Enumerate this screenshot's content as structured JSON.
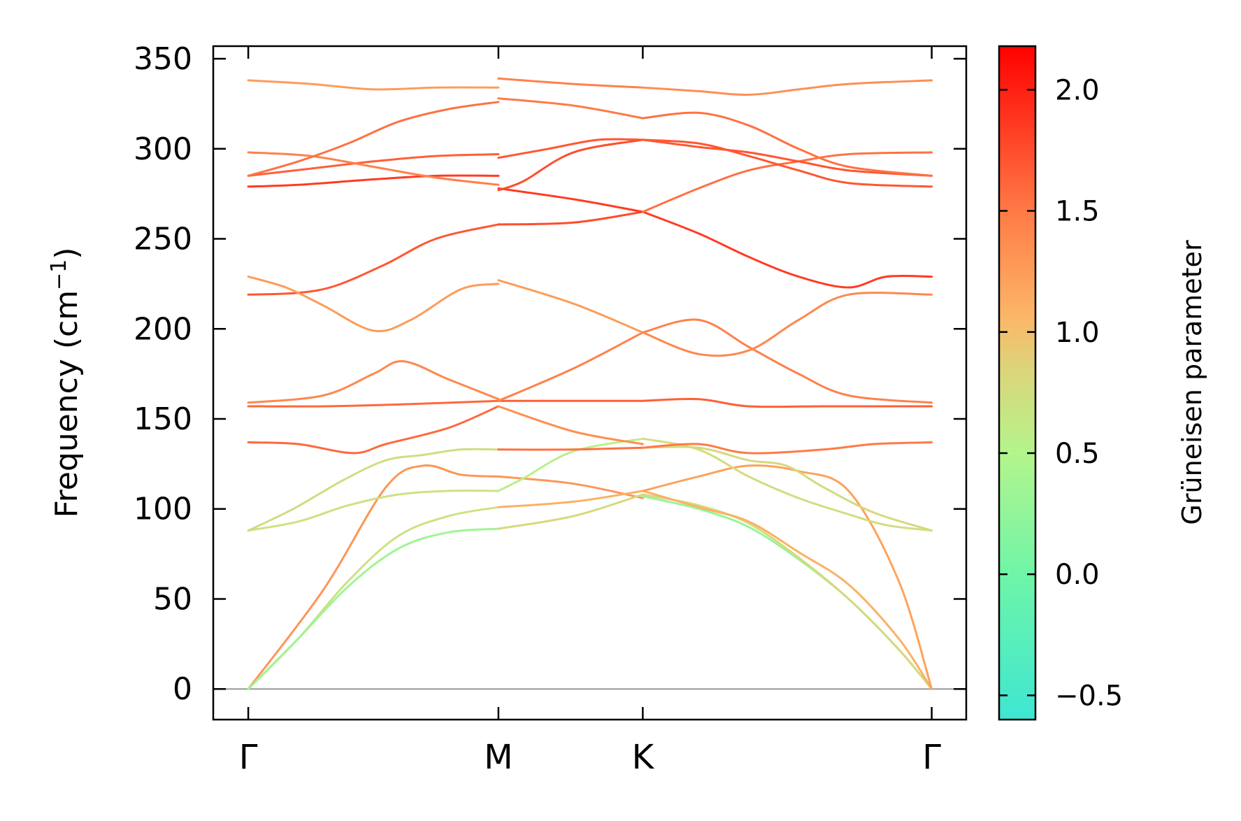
{
  "chart_data": {
    "type": "line",
    "title": "",
    "xlabel": "",
    "ylabel": "Frequency (cm",
    "ylabel_sup": "−1",
    "ylabel_close": ")",
    "ylim": [
      -17,
      357
    ],
    "yticks": [
      0,
      50,
      100,
      150,
      200,
      250,
      300,
      350
    ],
    "ytick_labels": [
      "0",
      "50",
      "100",
      "150",
      "200",
      "250",
      "300",
      "350"
    ],
    "x_points": [
      {
        "label": "Γ",
        "x": 0
      },
      {
        "label": "M",
        "x": 1
      },
      {
        "label": "K",
        "x": 1.577
      },
      {
        "label": "Γ",
        "x": 2.732
      }
    ],
    "xlim": [
      -0.14,
      2.87
    ],
    "zero_line": true,
    "colorbar": {
      "label": "Grüneisen parameter",
      "range": [
        -0.6,
        2.18
      ],
      "ticks": [
        -0.5,
        0.0,
        0.5,
        1.0,
        1.5,
        2.0
      ],
      "tick_labels": [
        "−0.5",
        "0.0",
        "0.5",
        "1.0",
        "1.5",
        "2.0"
      ],
      "colormap": "rainbow-upper",
      "stops": [
        {
          "v": -0.6,
          "color": "#3ee6d2"
        },
        {
          "v": 0.0,
          "color": "#6ff5a8"
        },
        {
          "v": 0.5,
          "color": "#b4f58c"
        },
        {
          "v": 0.85,
          "color": "#dcd47a"
        },
        {
          "v": 1.05,
          "color": "#fbb869"
        },
        {
          "v": 1.5,
          "color": "#ff7a46"
        },
        {
          "v": 2.18,
          "color": "#ff0000"
        }
      ]
    },
    "series": [
      {
        "segment": "Γ-M",
        "gamma": 1.3,
        "points": [
          [
            0,
            0
          ],
          [
            0.3,
            55
          ],
          [
            0.55,
            112
          ],
          [
            0.7,
            124
          ],
          [
            0.85,
            119
          ],
          [
            1,
            118
          ]
        ]
      },
      {
        "segment": "Γ-M",
        "gamma": 0.7,
        "points": [
          [
            0,
            0
          ],
          [
            0.2,
            28
          ],
          [
            0.4,
            60
          ],
          [
            0.6,
            85
          ],
          [
            0.8,
            96
          ],
          [
            1,
            101
          ]
        ]
      },
      {
        "segment": "Γ-M",
        "gamma": 0.35,
        "points": [
          [
            0,
            0
          ],
          [
            0.2,
            28
          ],
          [
            0.4,
            57
          ],
          [
            0.6,
            78
          ],
          [
            0.8,
            87
          ],
          [
            1,
            89
          ]
        ]
      },
      {
        "segment": "Γ-M",
        "gamma": 0.7,
        "points": [
          [
            0,
            88
          ],
          [
            0.2,
            93
          ],
          [
            0.4,
            102
          ],
          [
            0.6,
            108
          ],
          [
            0.8,
            110
          ],
          [
            1,
            110
          ]
        ]
      },
      {
        "segment": "Γ-M",
        "gamma": 0.75,
        "points": [
          [
            0,
            88
          ],
          [
            0.18,
            100
          ],
          [
            0.38,
            116
          ],
          [
            0.55,
            127
          ],
          [
            0.7,
            130
          ],
          [
            0.85,
            133
          ],
          [
            1,
            133
          ]
        ]
      },
      {
        "segment": "Γ-M",
        "gamma": 1.6,
        "points": [
          [
            0,
            137
          ],
          [
            0.2,
            136
          ],
          [
            0.42,
            131
          ],
          [
            0.55,
            136
          ],
          [
            0.8,
            145
          ],
          [
            1,
            157
          ]
        ]
      },
      {
        "segment": "Γ-M",
        "gamma": 1.6,
        "points": [
          [
            0,
            157
          ],
          [
            0.3,
            157
          ],
          [
            0.6,
            158
          ],
          [
            1,
            160
          ]
        ]
      },
      {
        "segment": "Γ-M",
        "gamma": 1.4,
        "points": [
          [
            0,
            159
          ],
          [
            0.3,
            163
          ],
          [
            0.5,
            175
          ],
          [
            0.62,
            182
          ],
          [
            0.8,
            172
          ],
          [
            1,
            161
          ]
        ]
      },
      {
        "segment": "Γ-M",
        "gamma": 1.7,
        "points": [
          [
            0,
            219
          ],
          [
            0.2,
            220
          ],
          [
            0.35,
            224
          ],
          [
            0.55,
            236
          ],
          [
            0.75,
            250
          ],
          [
            1,
            258
          ]
        ]
      },
      {
        "segment": "Γ-M",
        "gamma": 1.25,
        "points": [
          [
            0,
            229
          ],
          [
            0.15,
            223
          ],
          [
            0.3,
            213
          ],
          [
            0.5,
            199
          ],
          [
            0.65,
            205
          ],
          [
            0.85,
            222
          ],
          [
            1,
            225
          ]
        ]
      },
      {
        "segment": "Γ-M",
        "gamma": 1.85,
        "points": [
          [
            0,
            279
          ],
          [
            0.2,
            280
          ],
          [
            0.5,
            283
          ],
          [
            0.75,
            285
          ],
          [
            1,
            285
          ]
        ]
      },
      {
        "segment": "Γ-M",
        "gamma": 1.65,
        "points": [
          [
            0,
            285
          ],
          [
            0.25,
            289
          ],
          [
            0.5,
            293
          ],
          [
            0.75,
            296
          ],
          [
            1,
            297
          ]
        ]
      },
      {
        "segment": "Γ-M",
        "gamma": 1.45,
        "points": [
          [
            0,
            298
          ],
          [
            0.25,
            296
          ],
          [
            0.5,
            290
          ],
          [
            0.75,
            284
          ],
          [
            1,
            280
          ]
        ]
      },
      {
        "segment": "Γ-M",
        "gamma": 1.55,
        "points": [
          [
            0,
            285
          ],
          [
            0.2,
            293
          ],
          [
            0.4,
            303
          ],
          [
            0.6,
            315
          ],
          [
            0.8,
            322
          ],
          [
            1,
            326
          ]
        ]
      },
      {
        "segment": "Γ-M",
        "gamma": 1.25,
        "points": [
          [
            0,
            338
          ],
          [
            0.25,
            336
          ],
          [
            0.5,
            333
          ],
          [
            0.75,
            334
          ],
          [
            1,
            334
          ]
        ]
      },
      {
        "segment": "M-K",
        "gamma": 1.3,
        "points": [
          [
            1,
            118
          ],
          [
            1.3,
            114
          ],
          [
            1.577,
            106
          ]
        ]
      },
      {
        "segment": "M-K",
        "gamma": 1.1,
        "points": [
          [
            1,
            101
          ],
          [
            1.3,
            104
          ],
          [
            1.577,
            110
          ]
        ]
      },
      {
        "segment": "M-K",
        "gamma": 0.8,
        "points": [
          [
            1,
            89
          ],
          [
            1.3,
            96
          ],
          [
            1.577,
            108
          ]
        ]
      },
      {
        "segment": "M-K",
        "gamma": 0.55,
        "points": [
          [
            1,
            110
          ],
          [
            1.1,
            117
          ],
          [
            1.3,
            132
          ],
          [
            1.577,
            139
          ]
        ]
      },
      {
        "segment": "M-K",
        "gamma": 1.55,
        "points": [
          [
            1,
            133
          ],
          [
            1.3,
            133
          ],
          [
            1.577,
            134
          ]
        ]
      },
      {
        "segment": "M-K",
        "gamma": 1.35,
        "points": [
          [
            1,
            157
          ],
          [
            1.3,
            143
          ],
          [
            1.577,
            136
          ]
        ]
      },
      {
        "segment": "M-K",
        "gamma": 1.65,
        "points": [
          [
            1,
            160
          ],
          [
            1.3,
            160
          ],
          [
            1.577,
            160
          ]
        ]
      },
      {
        "segment": "M-K",
        "gamma": 1.45,
        "points": [
          [
            1,
            160
          ],
          [
            1.3,
            178
          ],
          [
            1.577,
            198
          ]
        ]
      },
      {
        "segment": "M-K",
        "gamma": 1.25,
        "points": [
          [
            1,
            227
          ],
          [
            1.3,
            214
          ],
          [
            1.577,
            198
          ]
        ]
      },
      {
        "segment": "M-K",
        "gamma": 1.75,
        "points": [
          [
            1,
            258
          ],
          [
            1.3,
            259
          ],
          [
            1.577,
            265
          ]
        ]
      },
      {
        "segment": "M-K",
        "gamma": 1.85,
        "points": [
          [
            1,
            278
          ],
          [
            1.3,
            272
          ],
          [
            1.577,
            265
          ]
        ]
      },
      {
        "segment": "M-K",
        "gamma": 1.75,
        "points": [
          [
            1,
            277
          ],
          [
            1.1,
            282
          ],
          [
            1.3,
            298
          ],
          [
            1.577,
            305
          ]
        ]
      },
      {
        "segment": "M-K",
        "gamma": 1.7,
        "points": [
          [
            1,
            295
          ],
          [
            1.2,
            300
          ],
          [
            1.4,
            305
          ],
          [
            1.577,
            305
          ]
        ]
      },
      {
        "segment": "M-K",
        "gamma": 1.5,
        "points": [
          [
            1,
            328
          ],
          [
            1.3,
            324
          ],
          [
            1.577,
            317
          ]
        ]
      },
      {
        "segment": "M-K",
        "gamma": 1.45,
        "points": [
          [
            1,
            339
          ],
          [
            1.3,
            336
          ],
          [
            1.577,
            334
          ]
        ]
      },
      {
        "segment": "K-Γ",
        "gamma": 0.3,
        "points": [
          [
            1.577,
            107
          ],
          [
            1.8,
            100
          ],
          [
            2.0,
            90
          ],
          [
            2.2,
            72
          ],
          [
            2.4,
            50
          ],
          [
            2.6,
            22
          ],
          [
            2.732,
            0
          ]
        ]
      },
      {
        "segment": "K-Γ",
        "gamma": 0.8,
        "points": [
          [
            1.577,
            108
          ],
          [
            1.8,
            102
          ],
          [
            2.0,
            92
          ],
          [
            2.2,
            73
          ],
          [
            2.4,
            50
          ],
          [
            2.6,
            22
          ],
          [
            2.732,
            0
          ]
        ]
      },
      {
        "segment": "K-Γ",
        "gamma": 1.1,
        "points": [
          [
            1.577,
            110
          ],
          [
            1.8,
            101
          ],
          [
            2.0,
            93
          ],
          [
            2.2,
            76
          ],
          [
            2.4,
            58
          ],
          [
            2.6,
            28
          ],
          [
            2.732,
            0
          ]
        ]
      },
      {
        "segment": "K-Γ",
        "gamma": 1.2,
        "points": [
          [
            1.577,
            110
          ],
          [
            1.8,
            118
          ],
          [
            2.0,
            124
          ],
          [
            2.2,
            121
          ],
          [
            2.4,
            110
          ],
          [
            2.6,
            60
          ],
          [
            2.732,
            0
          ]
        ]
      },
      {
        "segment": "K-Γ",
        "gamma": 0.75,
        "points": [
          [
            1.577,
            139
          ],
          [
            1.8,
            133
          ],
          [
            2.0,
            118
          ],
          [
            2.2,
            106
          ],
          [
            2.4,
            97
          ],
          [
            2.55,
            91
          ],
          [
            2.732,
            88
          ]
        ]
      },
      {
        "segment": "K-Γ",
        "gamma": 0.8,
        "points": [
          [
            1.577,
            134
          ],
          [
            1.8,
            134
          ],
          [
            2.0,
            127
          ],
          [
            2.15,
            124
          ],
          [
            2.3,
            112
          ],
          [
            2.5,
            98
          ],
          [
            2.732,
            88
          ]
        ]
      },
      {
        "segment": "K-Γ",
        "gamma": 1.5,
        "points": [
          [
            1.577,
            134
          ],
          [
            1.8,
            136
          ],
          [
            2.0,
            131
          ],
          [
            2.3,
            133
          ],
          [
            2.5,
            136
          ],
          [
            2.732,
            137
          ]
        ]
      },
      {
        "segment": "K-Γ",
        "gamma": 1.65,
        "points": [
          [
            1.577,
            160
          ],
          [
            1.8,
            161
          ],
          [
            2.0,
            157
          ],
          [
            2.3,
            157
          ],
          [
            2.732,
            157
          ]
        ]
      },
      {
        "segment": "K-Γ",
        "gamma": 1.45,
        "points": [
          [
            1.577,
            198
          ],
          [
            1.8,
            205
          ],
          [
            2.0,
            190
          ],
          [
            2.2,
            175
          ],
          [
            2.4,
            163
          ],
          [
            2.732,
            159
          ]
        ]
      },
      {
        "segment": "K-Γ",
        "gamma": 1.4,
        "points": [
          [
            1.577,
            198
          ],
          [
            1.8,
            186
          ],
          [
            2.0,
            188
          ],
          [
            2.2,
            205
          ],
          [
            2.4,
            219
          ],
          [
            2.732,
            219
          ]
        ]
      },
      {
        "segment": "K-Γ",
        "gamma": 1.85,
        "points": [
          [
            1.577,
            265
          ],
          [
            1.8,
            253
          ],
          [
            2.0,
            240
          ],
          [
            2.2,
            229
          ],
          [
            2.4,
            223
          ],
          [
            2.55,
            229
          ],
          [
            2.732,
            229
          ]
        ]
      },
      {
        "segment": "K-Γ",
        "gamma": 1.55,
        "points": [
          [
            1.577,
            265
          ],
          [
            1.8,
            278
          ],
          [
            2.0,
            288
          ],
          [
            2.2,
            293
          ],
          [
            2.4,
            297
          ],
          [
            2.732,
            298
          ]
        ]
      },
      {
        "segment": "K-Γ",
        "gamma": 1.7,
        "points": [
          [
            1.577,
            305
          ],
          [
            1.8,
            303
          ],
          [
            2.0,
            296
          ],
          [
            2.2,
            288
          ],
          [
            2.4,
            281
          ],
          [
            2.732,
            279
          ]
        ]
      },
      {
        "segment": "K-Γ",
        "gamma": 1.7,
        "points": [
          [
            1.577,
            305
          ],
          [
            1.8,
            301
          ],
          [
            2.0,
            298
          ],
          [
            2.2,
            293
          ],
          [
            2.4,
            288
          ],
          [
            2.732,
            285
          ]
        ]
      },
      {
        "segment": "K-Γ",
        "gamma": 1.55,
        "points": [
          [
            1.577,
            317
          ],
          [
            1.8,
            320
          ],
          [
            2.0,
            313
          ],
          [
            2.2,
            300
          ],
          [
            2.4,
            290
          ],
          [
            2.732,
            285
          ]
        ]
      },
      {
        "segment": "K-Γ",
        "gamma": 1.35,
        "points": [
          [
            1.577,
            334
          ],
          [
            1.8,
            332
          ],
          [
            2.0,
            330
          ],
          [
            2.2,
            333
          ],
          [
            2.4,
            336
          ],
          [
            2.732,
            338
          ]
        ]
      }
    ]
  }
}
